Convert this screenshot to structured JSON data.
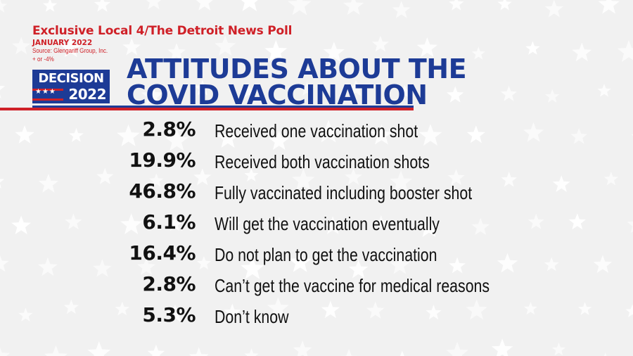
{
  "header": {
    "poll_title": "Exclusive Local 4/The Detroit News Poll",
    "date": "JANUARY 2022",
    "source": "Source: Glengariff Group, Inc.",
    "margin": "+ or -4%",
    "logo_top": "DECISION",
    "logo_year": "2022",
    "title_line1": "ATTITUDES ABOUT THE",
    "title_line2": "COVID VACCINATION"
  },
  "colors": {
    "blue": "#1d3b96",
    "red": "#cf2027",
    "text": "#111111",
    "background": "#f1f1f1"
  },
  "chart_data": {
    "type": "table",
    "title": "ATTITUDES ABOUT THE COVID VACCINATION",
    "rows": [
      {
        "value": "2.8%",
        "label": "Received one vaccination shot"
      },
      {
        "value": "19.9%",
        "label": "Received both vaccination shots"
      },
      {
        "value": "46.8%",
        "label": "Fully vaccinated including booster shot"
      },
      {
        "value": "6.1%",
        "label": "Will get the vaccination eventually"
      },
      {
        "value": "16.4%",
        "label": "Do not plan to get the vaccination"
      },
      {
        "value": "2.8%",
        "label": "Can’t get the vaccine for medical reasons"
      },
      {
        "value": "5.3%",
        "label": "Don’t know"
      }
    ]
  }
}
